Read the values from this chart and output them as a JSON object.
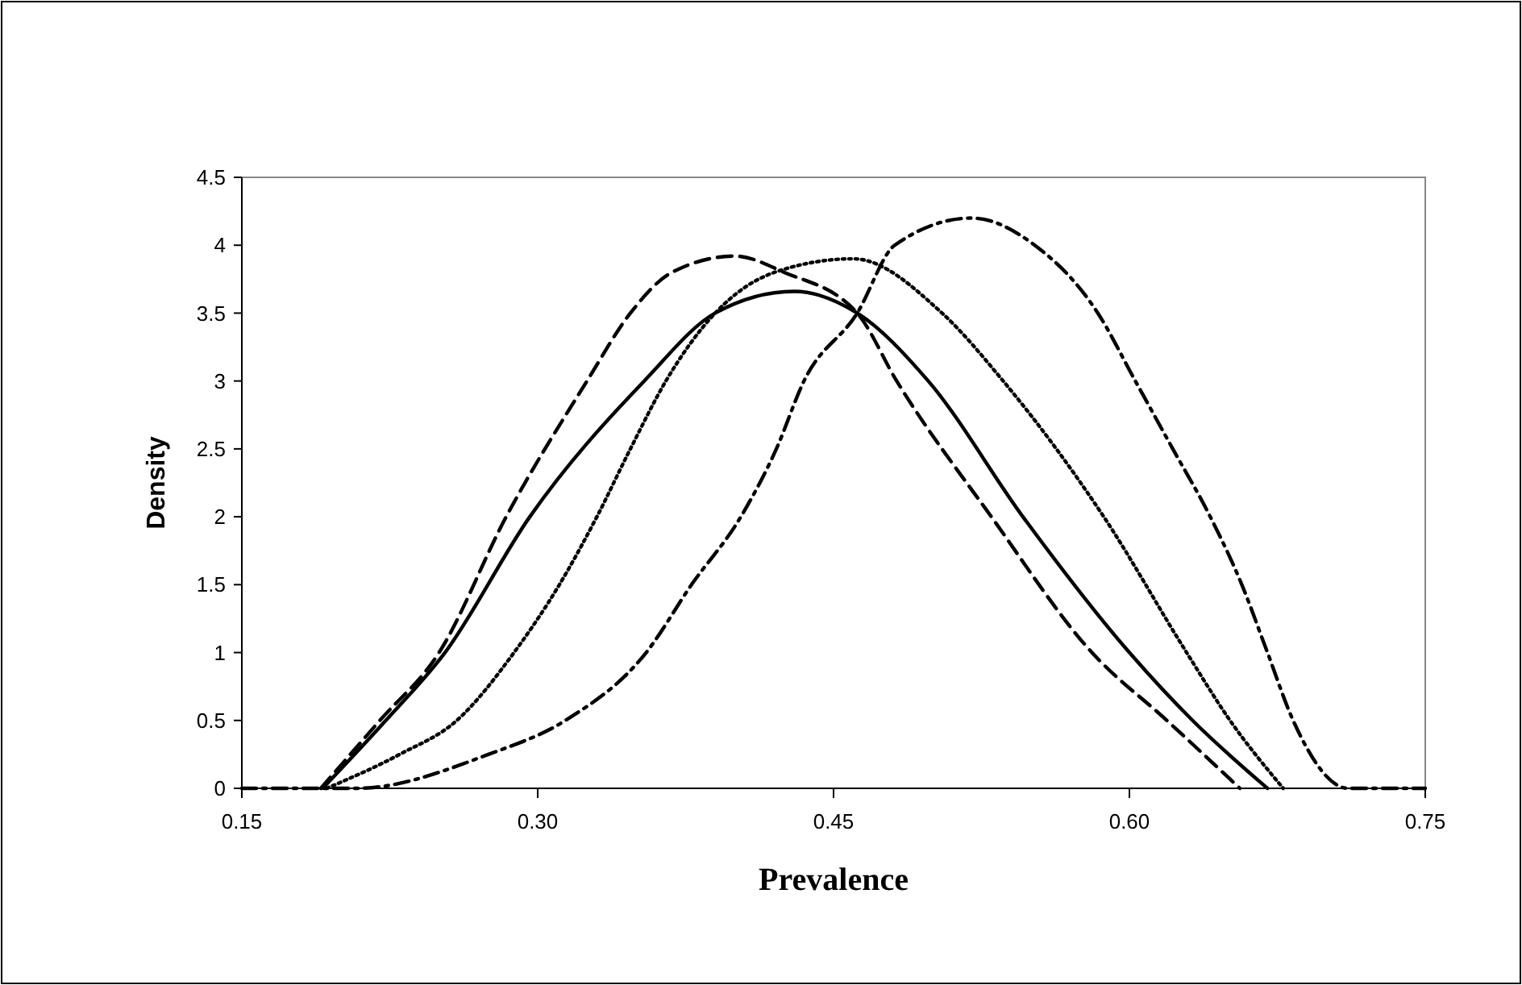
{
  "chart_data": {
    "type": "line",
    "xlabel": "Prevalence",
    "ylabel": "Density",
    "xlim": [
      0.15,
      0.75
    ],
    "xticks": [
      {
        "value": 0.15,
        "label": "0.15"
      },
      {
        "value": 0.3,
        "label": "0.30"
      },
      {
        "value": 0.45,
        "label": "0.45"
      },
      {
        "value": 0.6,
        "label": "0.60"
      },
      {
        "value": 0.75,
        "label": "0.75"
      }
    ],
    "ylim": [
      0,
      4.5
    ],
    "yticks": [
      0,
      0.5,
      1,
      1.5,
      2,
      2.5,
      3,
      3.5,
      4,
      4.5
    ],
    "grid": false,
    "marker": "none",
    "series": [
      {
        "color": "#000000",
        "line_style": "dashed",
        "x": [
          0.19,
          0.22,
          0.25,
          0.284,
          0.325,
          0.347,
          0.368,
          0.4,
          0.425,
          0.462,
          0.482,
          0.53,
          0.581,
          0.619,
          0.656
        ],
        "values": [
          0,
          0.5,
          1,
          2,
          3,
          3.5,
          3.8,
          3.92,
          3.8,
          3.5,
          3,
          2,
          1,
          0.5,
          0
        ]
      },
      {
        "color": "#000000",
        "line_style": "solid",
        "x": [
          0.191,
          0.223,
          0.253,
          0.296,
          0.354,
          0.39,
          0.43,
          0.462,
          0.498,
          0.546,
          0.6,
          0.632,
          0.67
        ],
        "values": [
          0,
          0.5,
          1,
          2,
          3,
          3.5,
          3.66,
          3.5,
          3,
          2,
          1,
          0.5,
          0
        ]
      },
      {
        "color": "#000000",
        "line_style": "dotted",
        "x": [
          0.193,
          0.23,
          0.259,
          0.288,
          0.311,
          0.33,
          0.347,
          0.365,
          0.39,
          0.42,
          0.46,
          0.505,
          0.536,
          0.587,
          0.629,
          0.651,
          0.678
        ],
        "values": [
          0,
          0.25,
          0.5,
          1,
          1.5,
          2,
          2.5,
          3,
          3.5,
          3.8,
          3.9,
          3.5,
          3,
          2,
          1,
          0.5,
          0
        ]
      },
      {
        "color": "#000000",
        "line_style": "dashdot",
        "x": [
          0.15,
          0.208,
          0.275,
          0.314,
          0.355,
          0.378,
          0.403,
          0.421,
          0.435,
          0.462,
          0.481,
          0.52,
          0.552,
          0.584,
          0.603,
          0.622,
          0.641,
          0.657,
          0.67,
          0.683,
          0.711,
          0.75
        ],
        "values": [
          0,
          0,
          0.25,
          0.5,
          1,
          1.5,
          2,
          2.5,
          3,
          3.5,
          4,
          4.2,
          4,
          3.5,
          3,
          2.5,
          2,
          1.5,
          1,
          0.5,
          0,
          0
        ]
      }
    ]
  }
}
